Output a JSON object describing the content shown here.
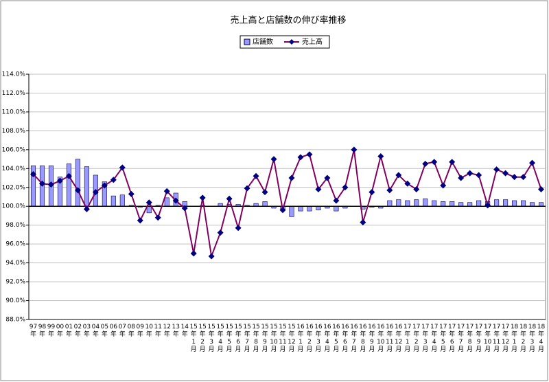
{
  "chart_data": {
    "type": "combo",
    "title": "売上高と店舗数の伸び率推移",
    "categories": [
      "97年",
      "98年",
      "99年",
      "00年",
      "01年",
      "02年",
      "03年",
      "04年",
      "05年",
      "06年",
      "07年",
      "08年",
      "09年",
      "10年",
      "11年",
      "12年",
      "13年",
      "14年",
      "15年1月",
      "15年2月",
      "15年3月",
      "15年4月",
      "15年5月",
      "15年6月",
      "15年7月",
      "15年8月",
      "15年9月",
      "15年10月",
      "15年11月",
      "15年12月",
      "16年1月",
      "16年2月",
      "16年3月",
      "16年4月",
      "16年5月",
      "16年6月",
      "16年7月",
      "16年8月",
      "16年9月",
      "16年10月",
      "16年11月",
      "16年12月",
      "17年1月",
      "17年2月",
      "17年3月",
      "17年4月",
      "17年5月",
      "17年6月",
      "17年7月",
      "17年8月",
      "17年9月",
      "17年10月",
      "17年11月",
      "17年12月",
      "18年1月",
      "18年2月",
      "18年3月",
      "18年4月"
    ],
    "series": [
      {
        "name": "店舗数",
        "type": "bar",
        "color": "#9999ff",
        "values": [
          104.3,
          104.3,
          104.3,
          103.1,
          104.5,
          105.0,
          104.2,
          103.3,
          102.6,
          101.1,
          101.2,
          100.1,
          99.9,
          99.3,
          100.1,
          100.9,
          101.4,
          100.5,
          100.0,
          100.1,
          100.0,
          100.3,
          100.2,
          100.2,
          100.1,
          100.3,
          100.5,
          99.8,
          99.6,
          98.9,
          99.5,
          99.5,
          99.6,
          99.8,
          99.5,
          99.8,
          100.0,
          99.7,
          99.9,
          99.8,
          100.6,
          100.7,
          100.6,
          100.7,
          100.8,
          100.6,
          100.5,
          100.5,
          100.4,
          100.4,
          100.6,
          100.5,
          100.7,
          100.7,
          100.6,
          100.6,
          100.4,
          100.4
        ]
      },
      {
        "name": "売上高",
        "type": "line",
        "color": "#800060",
        "marker_color": "#000080",
        "values": [
          103.4,
          102.4,
          102.3,
          102.7,
          103.2,
          101.7,
          99.7,
          101.5,
          102.2,
          102.8,
          104.1,
          101.3,
          98.5,
          100.4,
          98.8,
          101.6,
          100.6,
          99.8,
          95.0,
          100.9,
          94.7,
          97.2,
          100.8,
          97.7,
          101.9,
          103.2,
          101.5,
          105.0,
          99.6,
          103.0,
          105.2,
          105.5,
          101.8,
          103.0,
          100.6,
          102.0,
          106.0,
          98.3,
          101.5,
          105.3,
          101.7,
          103.3,
          102.4,
          101.8,
          104.5,
          104.7,
          102.2,
          104.7,
          103.0,
          103.5,
          103.3,
          100.1,
          103.9,
          103.5,
          103.1,
          103.1,
          104.6,
          101.8
        ]
      }
    ],
    "bar_base": 100,
    "ylim": [
      88,
      114
    ],
    "yticks": [
      {
        "value": 88,
        "label": "88.0%"
      },
      {
        "value": 90,
        "label": "90.0%"
      },
      {
        "value": 92,
        "label": "92.0%"
      },
      {
        "value": 94,
        "label": "94.0%"
      },
      {
        "value": 96,
        "label": "96.0%"
      },
      {
        "value": 98,
        "label": "98.0%"
      },
      {
        "value": 100,
        "label": "100.0%"
      },
      {
        "value": 102,
        "label": "102.0%"
      },
      {
        "value": 104,
        "label": "104.0%"
      },
      {
        "value": 106,
        "label": "106.0%"
      },
      {
        "value": 108,
        "label": "108.0%"
      },
      {
        "value": 110,
        "label": "110.0%"
      },
      {
        "value": 112,
        "label": "112.0%"
      },
      {
        "value": 114,
        "label": "114.0%"
      }
    ],
    "grid": true,
    "legend": "top"
  }
}
